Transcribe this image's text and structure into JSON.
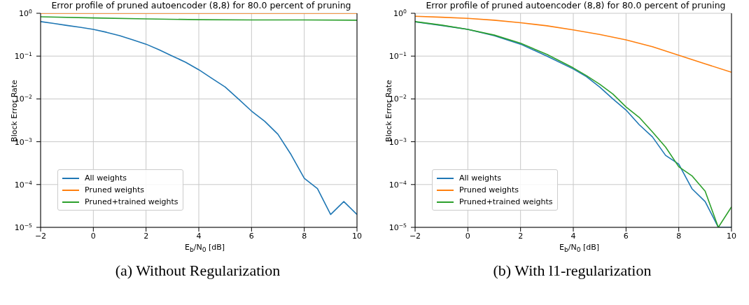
{
  "chart_data": [
    {
      "type": "line",
      "title": "Error profile of pruned autoencoder (8,8) for 80.0 percent of pruning",
      "xlabel": "E$_{b}$/N$_{0}$ [dB]",
      "ylabel": "Block Error Rate",
      "annotations": [
        "(a) Without Regularization"
      ],
      "log": "y",
      "grid": true,
      "legend": "bottom left",
      "marker": "none",
      "line_style": "solid",
      "xlim": [
        -2,
        10
      ],
      "xticks": [
        -2,
        0,
        2,
        4,
        6,
        8,
        10
      ],
      "ylim": [
        1e-05,
        1
      ],
      "yticks": [
        {
          "value": 1e-05,
          "label": "10$^{−5}$"
        },
        {
          "value": 0.0001,
          "label": "10$^{−4}$"
        },
        {
          "value": 0.001,
          "label": "10$^{−3}$"
        },
        {
          "value": 0.01,
          "label": "10$^{−2}$"
        },
        {
          "value": 0.1,
          "label": "10$^{−1}$"
        },
        {
          "value": 1,
          "label": "10$^{0}$"
        }
      ],
      "series": [
        {
          "name": "All weights",
          "color": "#1f77b4",
          "x": [
            -2,
            -1.5,
            -1,
            -0.5,
            0,
            0.5,
            1,
            1.5,
            2,
            2.5,
            3,
            3.5,
            4,
            4.5,
            5,
            5.5,
            6,
            6.5,
            7,
            7.5,
            8,
            8.5,
            9,
            9.5,
            10
          ],
          "values": [
            0.64,
            0.58,
            0.52,
            0.47,
            0.42,
            0.36,
            0.3,
            0.24,
            0.19,
            0.14,
            0.1,
            0.072,
            0.048,
            0.03,
            0.019,
            0.01,
            0.0052,
            0.003,
            0.0015,
            0.0005,
            0.00014,
            8e-05,
            2e-05,
            4e-05,
            2e-05
          ]
        },
        {
          "name": "Pruned weights",
          "color": "#ff7f0e",
          "x": [
            -2,
            0,
            2,
            4,
            6,
            8,
            10
          ],
          "values": [
            1,
            1,
            1,
            1,
            1,
            1,
            1
          ]
        },
        {
          "name": "Pruned+trained weights",
          "color": "#2ca02c",
          "x": [
            -2,
            0,
            2,
            4,
            6,
            8,
            10
          ],
          "values": [
            0.83,
            0.78,
            0.74,
            0.71,
            0.7,
            0.7,
            0.69
          ]
        }
      ]
    },
    {
      "type": "line",
      "title": "Error profile of pruned autoencoder (8,8) for 80.0 percent of pruning",
      "xlabel": "E$_{b}$/N$_{0}$ [dB]",
      "ylabel": "Block Error Rate",
      "annotations": [
        "(b) With l1-regularization"
      ],
      "log": "y",
      "grid": true,
      "legend": "bottom left",
      "marker": "none",
      "line_style": "solid",
      "xlim": [
        -2,
        10
      ],
      "xticks": [
        -2,
        0,
        2,
        4,
        6,
        8,
        10
      ],
      "ylim": [
        1e-05,
        1
      ],
      "yticks": [
        {
          "value": 1e-05,
          "label": "10$^{−5}$"
        },
        {
          "value": 0.0001,
          "label": "10$^{−4}$"
        },
        {
          "value": 0.001,
          "label": "10$^{−3}$"
        },
        {
          "value": 0.01,
          "label": "10$^{−2}$"
        },
        {
          "value": 0.1,
          "label": "10$^{−1}$"
        },
        {
          "value": 1,
          "label": "10$^{0}$"
        }
      ],
      "series": [
        {
          "name": "All weights",
          "color": "#1f77b4",
          "x": [
            -2,
            -1,
            0,
            1,
            2,
            3,
            4,
            4.5,
            5,
            5.5,
            6,
            6.5,
            7,
            7.5,
            8,
            8.5,
            9,
            9.5,
            10
          ],
          "values": [
            0.63,
            0.52,
            0.42,
            0.3,
            0.19,
            0.1,
            0.05,
            0.033,
            0.019,
            0.01,
            0.0055,
            0.0025,
            0.0013,
            0.00048,
            0.0003,
            8e-05,
            4e-05,
            1e-05,
            1e-05
          ]
        },
        {
          "name": "Pruned weights",
          "color": "#ff7f0e",
          "x": [
            -2,
            -1,
            0,
            1,
            2,
            3,
            4,
            5,
            6,
            7,
            8,
            9,
            10
          ],
          "values": [
            0.85,
            0.81,
            0.76,
            0.69,
            0.6,
            0.51,
            0.41,
            0.32,
            0.24,
            0.166,
            0.105,
            0.066,
            0.042
          ]
        },
        {
          "name": "Pruned+trained weights",
          "color": "#2ca02c",
          "x": [
            -2,
            -1,
            0,
            1,
            2,
            3,
            4,
            4.5,
            5,
            5.5,
            6,
            6.5,
            7,
            7.5,
            8,
            8.5,
            9,
            9.5,
            10
          ],
          "values": [
            0.64,
            0.53,
            0.42,
            0.31,
            0.2,
            0.11,
            0.053,
            0.035,
            0.022,
            0.013,
            0.0065,
            0.0037,
            0.0017,
            0.00075,
            0.00026,
            0.00016,
            7e-05,
            1e-05,
            3e-05
          ]
        }
      ]
    }
  ]
}
